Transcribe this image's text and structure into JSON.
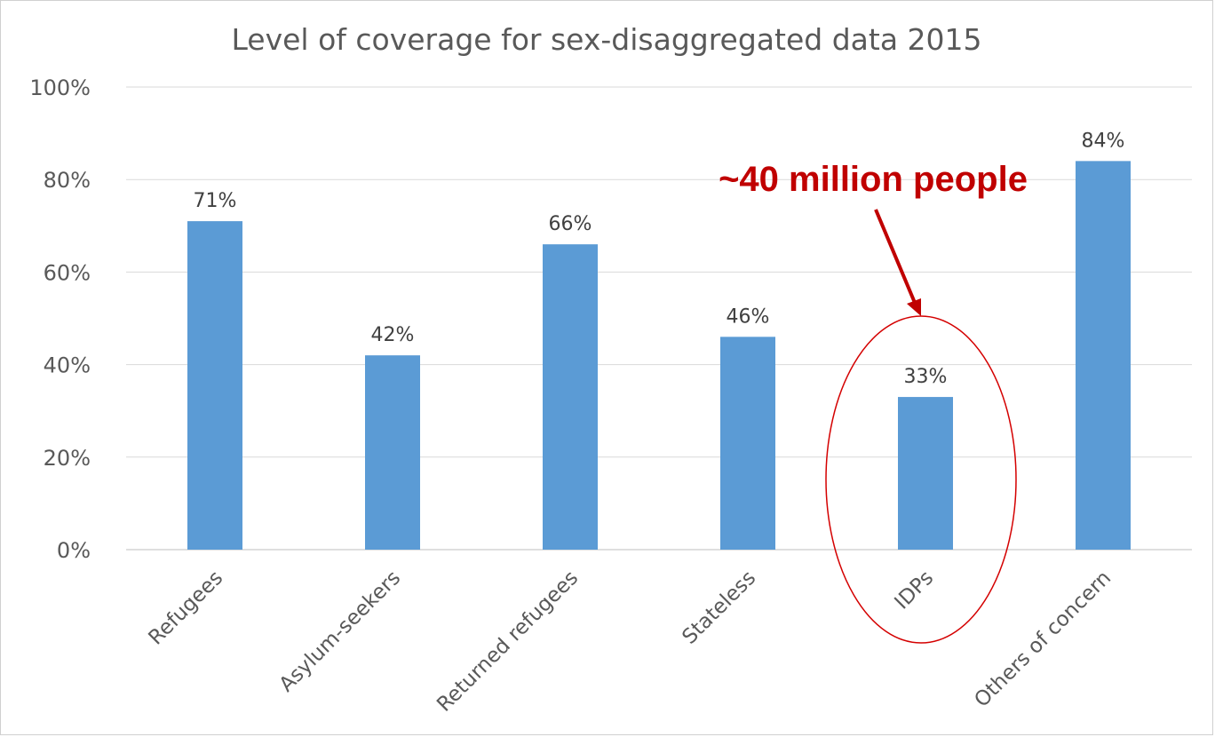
{
  "chart_data": {
    "type": "bar",
    "title": "Level of coverage for sex-disaggregated data 2015",
    "categories": [
      "Refugees",
      "Asylum-seekers",
      "Returned refugees",
      "Stateless",
      "IDPs",
      "Others of concern"
    ],
    "values": [
      71,
      42,
      66,
      46,
      33,
      84
    ],
    "value_labels": [
      "71%",
      "42%",
      "66%",
      "46%",
      "33%",
      "84%"
    ],
    "ylim": [
      0,
      100
    ],
    "yticks": [
      0,
      20,
      40,
      60,
      80,
      100
    ],
    "ytick_labels": [
      "0%",
      "20%",
      "40%",
      "60%",
      "80%",
      "100%"
    ],
    "grid": true,
    "bar_color": "#5b9bd5",
    "xlabel": "",
    "ylabel": ""
  },
  "annotation": {
    "text": "~40 million people",
    "target_category": "IDPs",
    "color": "#c00000"
  }
}
